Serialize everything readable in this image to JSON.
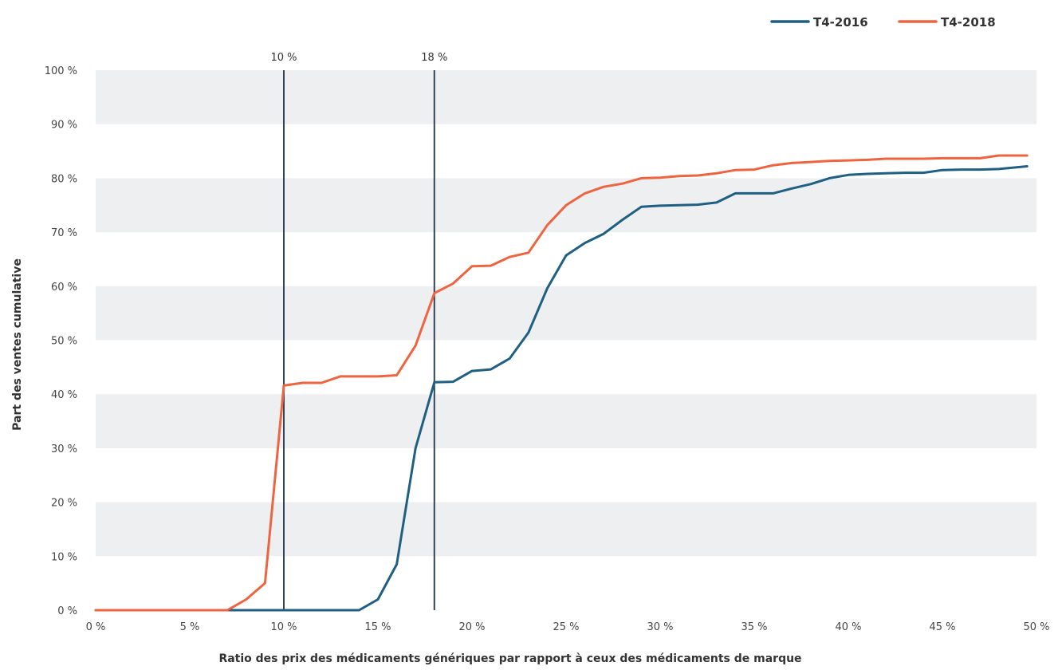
{
  "colors": {
    "series_2016": "#1f5f82",
    "series_2018": "#ee6440",
    "band": "#eeeff1",
    "ref_line": "#2f4458"
  },
  "chart_data": {
    "type": "line",
    "xlabel": "Ratio des prix des médicaments génériques par rapport à ceux des médicaments de marque",
    "ylabel": "Part des ventes cumulative",
    "xlim": [
      0,
      50
    ],
    "ylim": [
      0,
      100
    ],
    "x_ticks": [
      0,
      5,
      10,
      15,
      20,
      25,
      30,
      35,
      40,
      45,
      50
    ],
    "y_ticks": [
      0,
      10,
      20,
      30,
      40,
      50,
      60,
      70,
      80,
      90,
      100
    ],
    "x_tick_labels": [
      "0 %",
      "5 %",
      "10 %",
      "15 %",
      "20 %",
      "25 %",
      "30 %",
      "35 %",
      "40 %",
      "45 %",
      "50 %"
    ],
    "y_tick_labels": [
      "0 %",
      "10 %",
      "20 %",
      "30 %",
      "40 %",
      "50 %",
      "60 %",
      "70 %",
      "80 %",
      "90 %",
      "100 %"
    ],
    "grid": "alternating horizontal bands",
    "legend": {
      "position": "top-right"
    },
    "reference_lines": [
      {
        "x": 10,
        "label": "10 %"
      },
      {
        "x": 18,
        "label": "18 %"
      }
    ],
    "series": [
      {
        "name": "T4-2016",
        "x": [
          0,
          1,
          2,
          3,
          4,
          5,
          6,
          7,
          8,
          9,
          10,
          11,
          12,
          13,
          14,
          15,
          16,
          17,
          18,
          19,
          20,
          21,
          22,
          23,
          24,
          25,
          26,
          27,
          28,
          29,
          30,
          31,
          32,
          33,
          34,
          35,
          36,
          37,
          38,
          39,
          40,
          41,
          42,
          43,
          44,
          45,
          46,
          47,
          48,
          49.5
        ],
        "y": [
          0,
          0,
          0,
          0,
          0,
          0,
          0,
          0,
          0,
          0,
          0,
          0,
          0,
          0,
          0,
          2,
          8.5,
          30,
          42.2,
          42.3,
          44.3,
          44.6,
          46.6,
          51.4,
          59.6,
          65.7,
          68,
          69.7,
          72.3,
          74.7,
          74.9,
          75,
          75.1,
          75.5,
          77.2,
          77.2,
          77.2,
          78.1,
          78.9,
          80,
          80.6,
          80.8,
          80.9,
          81,
          81,
          81.5,
          81.6,
          81.6,
          81.7,
          82.2
        ]
      },
      {
        "name": "T4-2018",
        "x": [
          0,
          1,
          2,
          3,
          4,
          5,
          6,
          7,
          8,
          9,
          10,
          11,
          12,
          13,
          14,
          15,
          16,
          17,
          18,
          19,
          20,
          21,
          22,
          23,
          24,
          25,
          26,
          27,
          28,
          29,
          30,
          31,
          32,
          33,
          34,
          35,
          36,
          37,
          38,
          39,
          40,
          41,
          42,
          43,
          44,
          45,
          46,
          47,
          48,
          49.5
        ],
        "y": [
          0,
          0,
          0,
          0,
          0,
          0,
          0,
          0,
          2,
          5,
          41.6,
          42.1,
          42.1,
          43.3,
          43.3,
          43.3,
          43.5,
          49,
          58.7,
          60.5,
          63.7,
          63.8,
          65.4,
          66.2,
          71.3,
          75,
          77.2,
          78.4,
          79,
          80,
          80.1,
          80.4,
          80.5,
          80.9,
          81.5,
          81.6,
          82.4,
          82.8,
          83,
          83.2,
          83.3,
          83.4,
          83.6,
          83.6,
          83.6,
          83.7,
          83.7,
          83.7,
          84.2,
          84.2
        ]
      }
    ]
  }
}
